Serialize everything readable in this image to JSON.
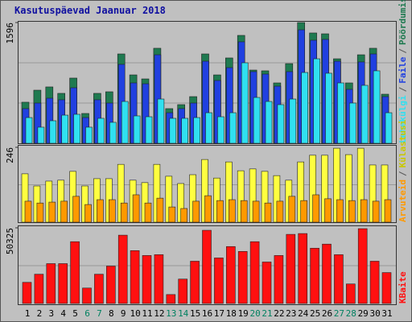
{
  "chart_data": [
    {
      "type": "bar",
      "title": "Kasutuspäevad Jaanuar 2018",
      "separator": "/",
      "ylim": [
        0,
        1596
      ],
      "yticks": [
        1596
      ],
      "series": [
        {
          "name": "Pöördumisi",
          "color": "#1f7a50",
          "values": [
            543,
            702,
            745,
            660,
            862,
            394,
            660,
            681,
            1181,
            904,
            851,
            1256,
            458,
            511,
            617,
            1181,
            904,
            1128,
            1426,
            968,
            958,
            798,
            1053,
            1596,
            1458,
            1447,
            1117,
            798,
            1170,
            1256,
            649
          ]
        },
        {
          "name": "Faile",
          "color": "#2040e0",
          "values": [
            458,
            532,
            596,
            575,
            734,
            340,
            575,
            532,
            1043,
            798,
            787,
            1170,
            404,
            458,
            532,
            1085,
            830,
            1000,
            1341,
            947,
            915,
            755,
            947,
            1500,
            1362,
            1373,
            1085,
            713,
            1075,
            1181,
            617
          ]
        },
        {
          "name": "Lehekülgi",
          "color": "#30e0f0",
          "values": [
            340,
            213,
            298,
            372,
            383,
            213,
            330,
            277,
            553,
            362,
            351,
            585,
            330,
            330,
            340,
            404,
            351,
            404,
            1064,
            606,
            553,
            511,
            585,
            936,
            1117,
            926,
            798,
            532,
            766,
            958,
            404
          ]
        }
      ]
    },
    {
      "type": "bar",
      "separator": "/",
      "ylim": [
        0,
        246
      ],
      "yticks": [
        246
      ],
      "series": [
        {
          "name": "Külastusi",
          "color": "#ffff40",
          "values": [
            159,
            119,
            135,
            138,
            167,
            119,
            143,
            143,
            190,
            138,
            130,
            190,
            151,
            127,
            156,
            206,
            145,
            198,
            169,
            175,
            167,
            153,
            138,
            198,
            220,
            220,
            243,
            222,
            243,
            188,
            188
          ]
        },
        {
          "name": "Arvuteid",
          "color": "#ff9900",
          "values": [
            69,
            63,
            66,
            69,
            85,
            58,
            74,
            74,
            63,
            90,
            63,
            79,
            50,
            45,
            69,
            87,
            71,
            74,
            71,
            69,
            63,
            69,
            85,
            71,
            90,
            77,
            74,
            71,
            74,
            69,
            74
          ]
        }
      ]
    },
    {
      "type": "bar",
      "ylim": [
        0,
        50325
      ],
      "yticks": [
        50325
      ],
      "categories": [
        "1",
        "2",
        "3",
        "4",
        "5",
        "6",
        "7",
        "8",
        "9",
        "10",
        "11",
        "12",
        "13",
        "14",
        "15",
        "16",
        "17",
        "18",
        "19",
        "20",
        "21",
        "22",
        "23",
        "24",
        "25",
        "26",
        "27",
        "28",
        "29",
        "30",
        "31"
      ],
      "weekend": [
        5,
        6,
        12,
        13,
        19,
        20,
        26,
        27
      ],
      "weekend_color": "#008060",
      "series": [
        {
          "name": "KBaite",
          "color": "#ff1010",
          "values": [
            14066,
            19476,
            26509,
            26509,
            41116,
            10279,
            19476,
            24886,
            45444,
            35165,
            31919,
            32460,
            5951,
            16230,
            28132,
            48690,
            30296,
            37870,
            34624,
            41116,
            27591,
            31919,
            45985,
            46526,
            36788,
            39493,
            32460,
            12984,
            49772,
            28132,
            20558
          ]
        }
      ]
    }
  ]
}
